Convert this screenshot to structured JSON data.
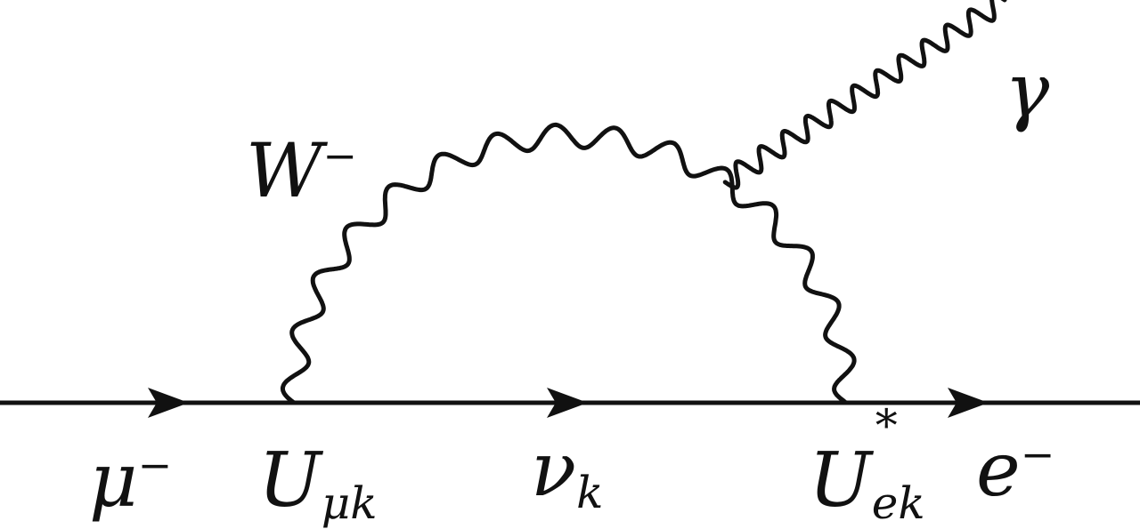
{
  "diagram": {
    "particles": {
      "incoming": {
        "symbol": "μ",
        "charge": "−"
      },
      "boson": {
        "symbol": "W",
        "charge": "−"
      },
      "internal": {
        "symbol": "ν",
        "index": "k"
      },
      "photon": {
        "symbol": "γ"
      },
      "outgoing": {
        "symbol": "e",
        "charge": "−"
      }
    },
    "vertices": {
      "left": {
        "symbol": "U",
        "index": "μk"
      },
      "right": {
        "symbol": "U",
        "star": "*",
        "index": "ek"
      }
    },
    "colors": {
      "line": "#111111",
      "background": "#ffffff"
    }
  }
}
